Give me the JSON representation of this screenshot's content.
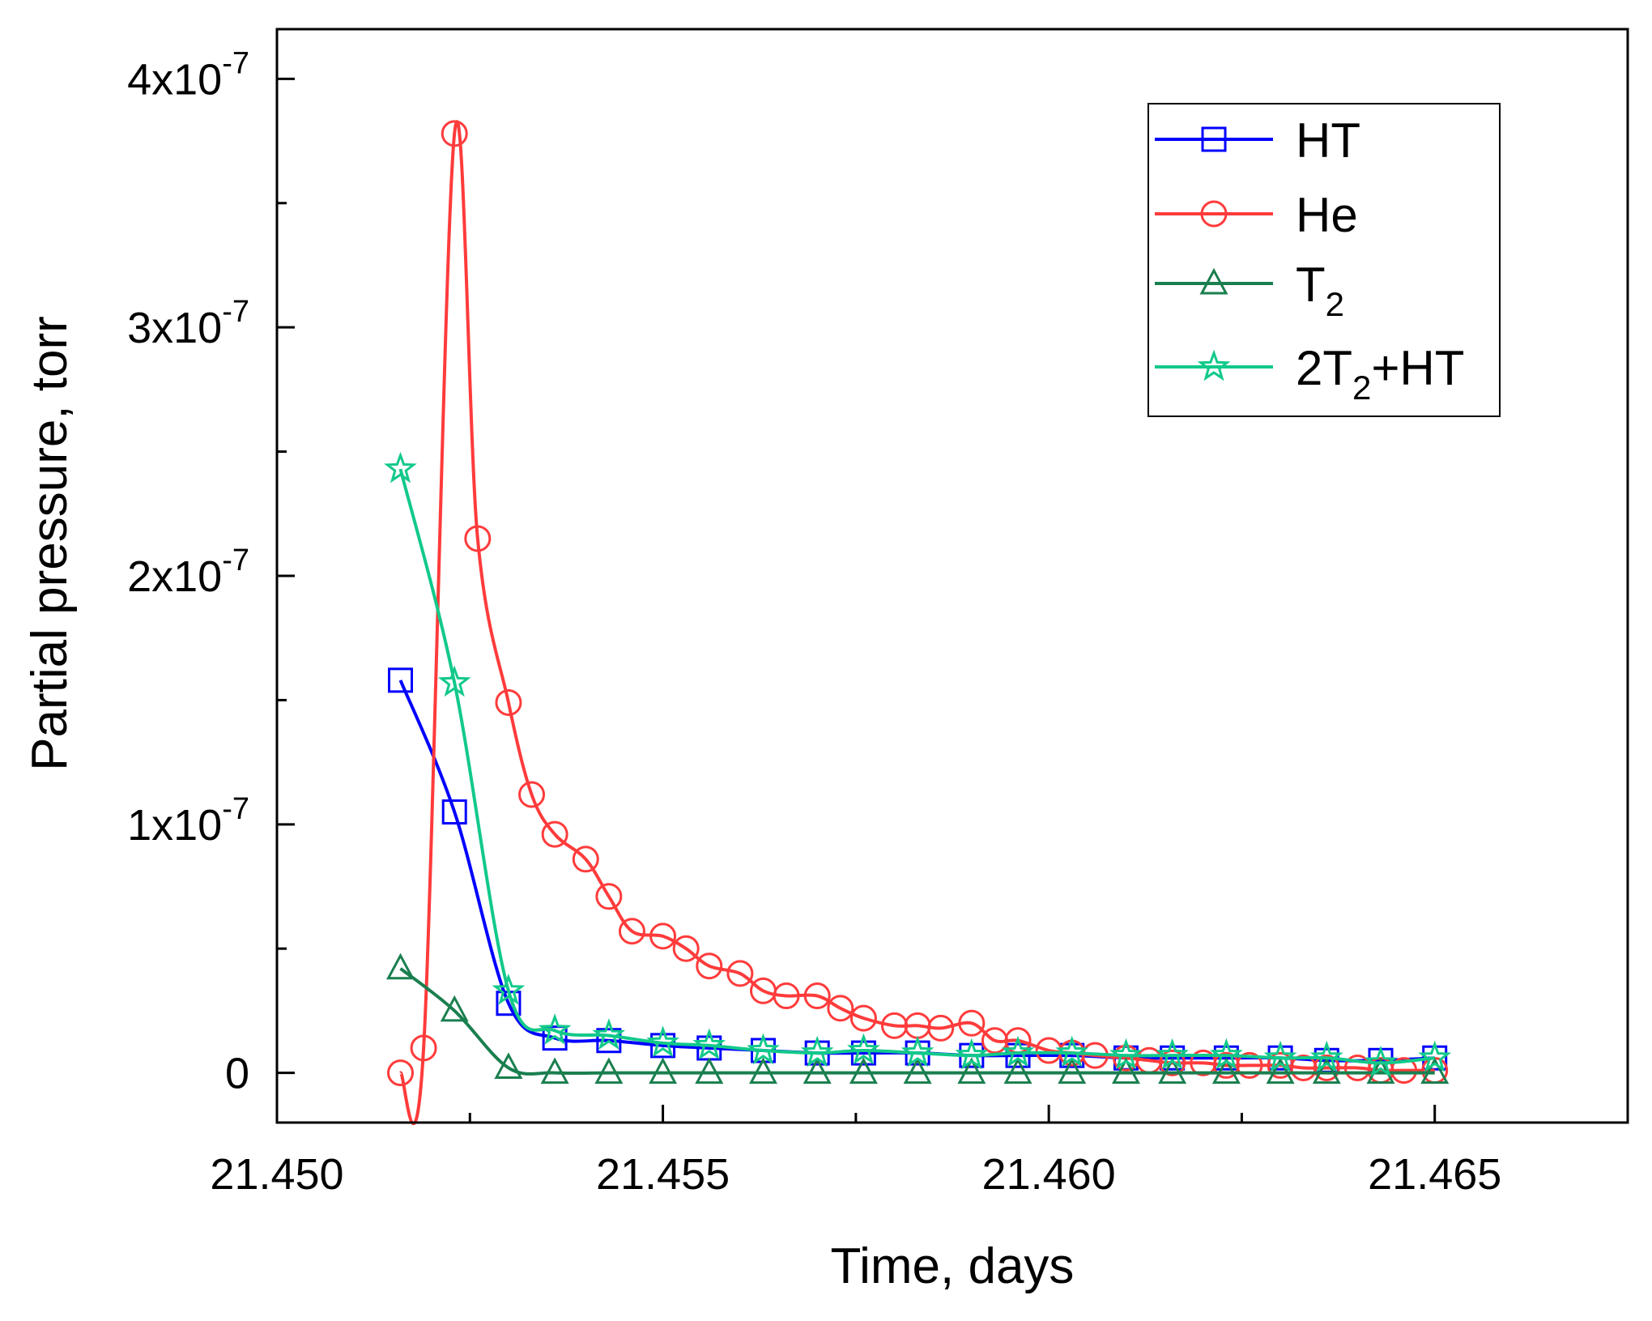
{
  "chart_data": {
    "type": "line",
    "title": "",
    "xlabel": "Time, days",
    "ylabel": "Partial pressure, torr",
    "xlim": [
      21.45,
      21.4675
    ],
    "ylim": [
      -2e-08,
      4.2e-07
    ],
    "x_ticks": [
      {
        "value": 21.45,
        "label": "21.450"
      },
      {
        "value": 21.455,
        "label": "21.455"
      },
      {
        "value": 21.46,
        "label": "21.460"
      },
      {
        "value": 21.465,
        "label": "21.465"
      }
    ],
    "y_ticks": [
      {
        "value": 0,
        "mantissa": "0",
        "exp": ""
      },
      {
        "value": 1e-07,
        "mantissa": "1x10",
        "exp": "-7"
      },
      {
        "value": 2e-07,
        "mantissa": "2x10",
        "exp": "-7"
      },
      {
        "value": 3e-07,
        "mantissa": "3x10",
        "exp": "-7"
      },
      {
        "value": 4e-07,
        "mantissa": "4x10",
        "exp": "-7"
      }
    ],
    "grid": false,
    "legend_position": "top-right",
    "series": [
      {
        "name": "HT",
        "legend": {
          "base": "HT",
          "sub": "",
          "rest": ""
        },
        "color": "#0000ff",
        "marker": "square",
        "x": [
          21.4516,
          21.4523,
          21.453,
          21.4536,
          21.4543,
          21.455,
          21.4556,
          21.4563,
          21.457,
          21.4576,
          21.4583,
          21.459,
          21.4596,
          21.4603,
          21.461,
          21.4616,
          21.4623,
          21.463,
          21.4636,
          21.4643,
          21.465
        ],
        "y": [
          1.58e-07,
          1.05e-07,
          2.8e-08,
          1.4e-08,
          1.3e-08,
          1.1e-08,
          1e-08,
          9e-09,
          8e-09,
          8e-09,
          8e-09,
          7e-09,
          7e-09,
          7e-09,
          6e-09,
          6e-09,
          6e-09,
          6e-09,
          5e-09,
          5e-09,
          6e-09
        ]
      },
      {
        "name": "He",
        "legend": {
          "base": "He",
          "sub": "",
          "rest": ""
        },
        "color": "#ff3b3b",
        "marker": "circle",
        "x": [
          21.4516,
          21.4519,
          21.4523,
          21.4526,
          21.453,
          21.4533,
          21.4536,
          21.454,
          21.4543,
          21.4546,
          21.455,
          21.4553,
          21.4556,
          21.456,
          21.4563,
          21.4566,
          21.457,
          21.4573,
          21.4576,
          21.458,
          21.4583,
          21.4586,
          21.459,
          21.4593,
          21.4596,
          21.46,
          21.4603,
          21.4606,
          21.461,
          21.4613,
          21.4616,
          21.462,
          21.4623,
          21.4626,
          21.463,
          21.4633,
          21.4636,
          21.464,
          21.4643,
          21.4646,
          21.465
        ],
        "y": [
          0,
          1e-08,
          3.78e-07,
          2.15e-07,
          1.49e-07,
          1.12e-07,
          9.6e-08,
          8.6e-08,
          7.1e-08,
          5.7e-08,
          5.5e-08,
          5e-08,
          4.3e-08,
          4e-08,
          3.3e-08,
          3.1e-08,
          3.1e-08,
          2.6e-08,
          2.2e-08,
          1.9e-08,
          1.9e-08,
          1.8e-08,
          2e-08,
          1.3e-08,
          1.3e-08,
          9e-09,
          8e-09,
          7e-09,
          6e-09,
          5e-09,
          4e-09,
          4e-09,
          3e-09,
          3e-09,
          3e-09,
          2e-09,
          2e-09,
          2e-09,
          1e-09,
          1e-09,
          1e-09
        ]
      },
      {
        "name": "T2",
        "legend": {
          "base": "T",
          "sub": "2",
          "rest": ""
        },
        "color": "#1a7f4f",
        "marker": "triangle",
        "x": [
          21.4516,
          21.4523,
          21.453,
          21.4536,
          21.4543,
          21.455,
          21.4556,
          21.4563,
          21.457,
          21.4576,
          21.4583,
          21.459,
          21.4596,
          21.4603,
          21.461,
          21.4616,
          21.4623,
          21.463,
          21.4636,
          21.4643,
          21.465
        ],
        "y": [
          4.2e-08,
          2.5e-08,
          2e-09,
          0,
          0,
          0,
          0,
          0,
          0,
          0,
          0,
          0,
          0,
          0,
          0,
          0,
          0,
          0,
          0,
          0,
          0
        ]
      },
      {
        "name": "2T2+HT",
        "legend": {
          "base": "2T",
          "sub": "2",
          "rest": "+HT"
        },
        "color": "#12c98a",
        "marker": "star",
        "x": [
          21.4516,
          21.4523,
          21.453,
          21.4536,
          21.4543,
          21.455,
          21.4556,
          21.4563,
          21.457,
          21.4576,
          21.4583,
          21.459,
          21.4596,
          21.4603,
          21.461,
          21.4616,
          21.4623,
          21.463,
          21.4636,
          21.4643,
          21.465
        ],
        "y": [
          2.43e-07,
          1.57e-07,
          3.3e-08,
          1.7e-08,
          1.5e-08,
          1.2e-08,
          1.1e-08,
          9e-09,
          8e-09,
          9e-09,
          8e-09,
          7e-09,
          8e-09,
          8e-09,
          7e-09,
          7e-09,
          7e-09,
          6e-09,
          6e-09,
          4e-09,
          6e-09
        ]
      }
    ]
  }
}
